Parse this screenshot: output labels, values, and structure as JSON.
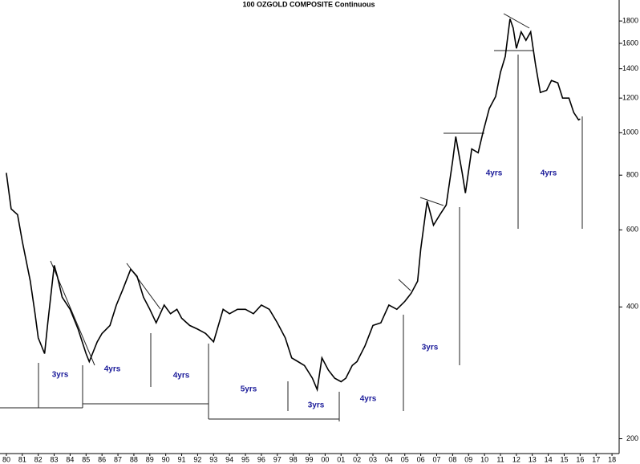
{
  "chart_data": {
    "type": "line",
    "title": "100 OZGOLD COMPOSITE Continuous",
    "log_scale": true,
    "x": [
      1980.0,
      1980.3,
      1980.7,
      1981.0,
      1981.5,
      1981.8,
      1982.0,
      1982.4,
      1982.6,
      1983.0,
      1983.2,
      1983.5,
      1984.0,
      1984.5,
      1985.0,
      1985.2,
      1985.7,
      1986.0,
      1986.5,
      1986.9,
      1987.3,
      1987.8,
      1988.2,
      1988.6,
      1989.0,
      1989.4,
      1989.9,
      1990.3,
      1990.7,
      1991.0,
      1991.5,
      1992.0,
      1992.5,
      1993.0,
      1993.3,
      1993.6,
      1994.0,
      1994.5,
      1995.0,
      1995.5,
      1996.0,
      1996.5,
      1997.0,
      1997.5,
      1997.9,
      1998.3,
      1998.7,
      1999.2,
      1999.5,
      1999.8,
      2000.2,
      2000.6,
      2001.0,
      2001.3,
      2001.7,
      2002.0,
      2002.5,
      2003.0,
      2003.5,
      2004.0,
      2004.5,
      2005.0,
      2005.4,
      2005.8,
      2006.0,
      2006.4,
      2006.8,
      2007.2,
      2007.6,
      2008.0,
      2008.2,
      2008.6,
      2008.8,
      2009.2,
      2009.6,
      2009.9,
      2010.3,
      2010.7,
      2011.0,
      2011.3,
      2011.6,
      2011.8,
      2012.0,
      2012.3,
      2012.6,
      2012.9,
      2013.2,
      2013.5,
      2013.9,
      2014.2,
      2014.6,
      2014.9,
      2015.3,
      2015.6,
      2015.9,
      2016.0
    ],
    "series": [
      {
        "name": "100 OZGOLD",
        "color": "#000000",
        "values": [
          810,
          670,
          650,
          565,
          458,
          386,
          340,
          313,
          368,
          498,
          470,
          421,
          395,
          356,
          313,
          300,
          333,
          348,
          363,
          404,
          438,
          488,
          470,
          421,
          395,
          368,
          404,
          386,
          395,
          377,
          363,
          356,
          348,
          333,
          363,
          395,
          386,
          395,
          395,
          386,
          404,
          395,
          368,
          340,
          306,
          300,
          294,
          275,
          259,
          306,
          287,
          275,
          270,
          275,
          294,
          300,
          326,
          363,
          368,
          404,
          395,
          412,
          430,
          458,
          542,
          698,
          615,
          650,
          684,
          862,
          980,
          810,
          728,
          918,
          900,
          1000,
          1136,
          1210,
          1374,
          1494,
          1820,
          1734,
          1558,
          1700,
          1626,
          1700,
          1432,
          1236,
          1250,
          1316,
          1300,
          1200,
          1200,
          1112,
          1070,
          1075
        ]
      }
    ],
    "xlim": [
      1979.6,
      2018.75
    ],
    "xticks": [
      {
        "value": 1980,
        "label": "80"
      },
      {
        "value": 1981,
        "label": "81"
      },
      {
        "value": 1982,
        "label": "82"
      },
      {
        "value": 1983,
        "label": "83"
      },
      {
        "value": 1984,
        "label": "84"
      },
      {
        "value": 1985,
        "label": "85"
      },
      {
        "value": 1986,
        "label": "86"
      },
      {
        "value": 1987,
        "label": "87"
      },
      {
        "value": 1988,
        "label": "88"
      },
      {
        "value": 1989,
        "label": "89"
      },
      {
        "value": 1990,
        "label": "90"
      },
      {
        "value": 1991,
        "label": "91"
      },
      {
        "value": 1992,
        "label": "92"
      },
      {
        "value": 1993,
        "label": "93"
      },
      {
        "value": 1994,
        "label": "94"
      },
      {
        "value": 1995,
        "label": "95"
      },
      {
        "value": 1996,
        "label": "96"
      },
      {
        "value": 1997,
        "label": "97"
      },
      {
        "value": 1998,
        "label": "98"
      },
      {
        "value": 1999,
        "label": "99"
      },
      {
        "value": 2000,
        "label": "00"
      },
      {
        "value": 2001,
        "label": "01"
      },
      {
        "value": 2002,
        "label": "02"
      },
      {
        "value": 2003,
        "label": "03"
      },
      {
        "value": 2004,
        "label": "04"
      },
      {
        "value": 2005,
        "label": "05"
      },
      {
        "value": 2006,
        "label": "06"
      },
      {
        "value": 2007,
        "label": "07"
      },
      {
        "value": 2008,
        "label": "08"
      },
      {
        "value": 2009,
        "label": "09"
      },
      {
        "value": 2010,
        "label": "10"
      },
      {
        "value": 2011,
        "label": "11"
      },
      {
        "value": 2012,
        "label": "12"
      },
      {
        "value": 2013,
        "label": "13"
      },
      {
        "value": 2014,
        "label": "14"
      },
      {
        "value": 2015,
        "label": "15"
      },
      {
        "value": 2016,
        "label": "16"
      },
      {
        "value": 2017,
        "label": "17"
      },
      {
        "value": 2018,
        "label": "18"
      }
    ],
    "ylim": [
      185,
      2010
    ],
    "yticks": [
      200,
      400,
      600,
      800,
      1000,
      1200,
      1400,
      1600,
      1800
    ],
    "annotations": [
      "3yrs",
      "4yrs",
      "4yrs",
      "5yrs",
      "3yrs",
      "4yrs",
      "3yrs",
      "4yrs",
      "4yrs"
    ]
  }
}
